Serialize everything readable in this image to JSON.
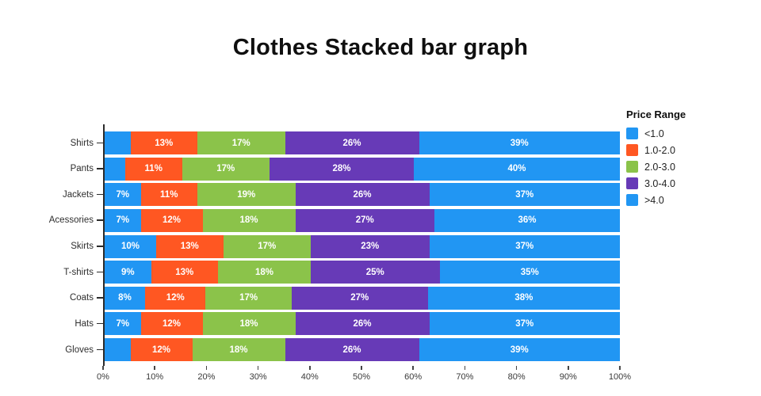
{
  "chart_data": {
    "type": "bar",
    "orientation": "horizontal",
    "stacked": true,
    "title": "Clothes Stacked bar graph",
    "categories": [
      "Shirts",
      "Pants",
      "Jackets",
      "Acessories",
      "Skirts",
      "T-shirts",
      "Coats",
      "Hats",
      "Gloves"
    ],
    "series": [
      {
        "name": "<1.0",
        "color": "#2196F3",
        "values": [
          5,
          4,
          7,
          7,
          10,
          9,
          8,
          7,
          5
        ],
        "labels": [
          "",
          "",
          "7%",
          "7%",
          "10%",
          "9%",
          "8%",
          "7%",
          ""
        ]
      },
      {
        "name": "1.0-2.0",
        "color": "#FF5722",
        "values": [
          13,
          11,
          11,
          12,
          13,
          13,
          12,
          12,
          12
        ],
        "labels": [
          "13%",
          "11%",
          "11%",
          "12%",
          "13%",
          "13%",
          "12%",
          "12%",
          "12%"
        ]
      },
      {
        "name": "2.0-3.0",
        "color": "#8BC34A",
        "values": [
          17,
          17,
          19,
          18,
          17,
          18,
          17,
          18,
          18
        ],
        "labels": [
          "17%",
          "17%",
          "19%",
          "18%",
          "17%",
          "18%",
          "17%",
          "18%",
          "18%"
        ]
      },
      {
        "name": "3.0-4.0",
        "color": "#673AB7",
        "values": [
          26,
          28,
          26,
          27,
          23,
          25,
          27,
          26,
          26
        ],
        "labels": [
          "26%",
          "28%",
          "26%",
          "27%",
          "23%",
          "25%",
          "27%",
          "26%",
          "26%"
        ]
      },
      {
        "name": ">4.0",
        "color": "#2196F3",
        "values": [
          39,
          40,
          37,
          36,
          37,
          35,
          38,
          37,
          39
        ],
        "labels": [
          "39%",
          "40%",
          "37%",
          "36%",
          "37%",
          "35%",
          "38%",
          "37%",
          "39%"
        ]
      }
    ],
    "x_ticks": [
      "0%",
      "10%",
      "20%",
      "30%",
      "40%",
      "50%",
      "60%",
      "70%",
      "80%",
      "90%",
      "100%"
    ],
    "xlim": [
      0,
      100
    ],
    "grid": false,
    "legend": {
      "title": "Price Range",
      "position": "right"
    }
  }
}
